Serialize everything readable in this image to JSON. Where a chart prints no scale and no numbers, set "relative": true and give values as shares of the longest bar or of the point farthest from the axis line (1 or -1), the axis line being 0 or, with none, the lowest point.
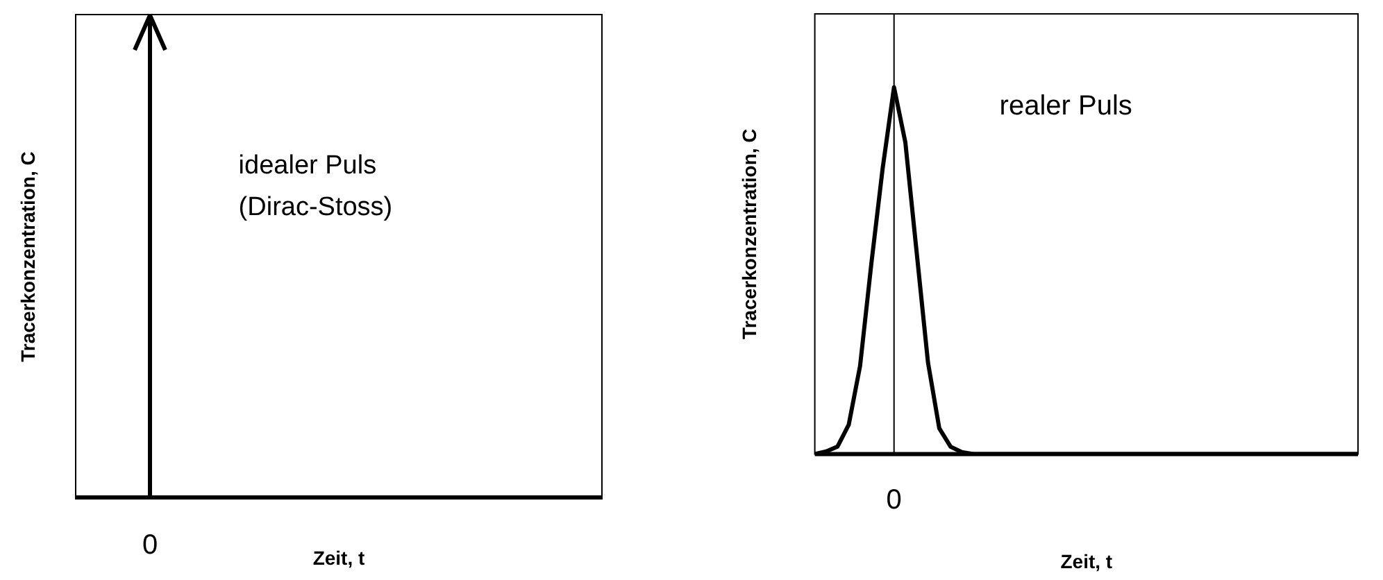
{
  "chart_data": [
    {
      "type": "other",
      "xlabel": "Zeit, t",
      "ylabel": "Tracerkonzentration, C",
      "color": "#000000",
      "annotations": [
        "idealer Puls\n(Dirac-Stoss)",
        "0"
      ]
    },
    {
      "type": "line",
      "relative": true,
      "xlabel": "Zeit, t",
      "ylabel": "Tracerkonzentration, C",
      "color": "#000000",
      "legend": false,
      "marker": "none",
      "categories": [
        null,
        null,
        null,
        null,
        null,
        null,
        null,
        null,
        null,
        null,
        null,
        null,
        null,
        null,
        null,
        null,
        null,
        null,
        null,
        null,
        null,
        null,
        null,
        null,
        null,
        null,
        null,
        null,
        null,
        null,
        null,
        null,
        null,
        null,
        null,
        null,
        null,
        null,
        null,
        null,
        null,
        null,
        null,
        null,
        null,
        null,
        null,
        null,
        null
      ],
      "values": [
        0,
        0.007,
        0.02,
        0.08,
        0.24,
        0.52,
        0.78,
        1,
        0.85,
        0.55,
        0.25,
        0.07,
        0.02,
        0.005,
        0,
        0,
        0,
        0,
        0,
        0,
        0,
        0,
        0,
        0,
        0,
        0,
        0,
        0,
        0,
        0,
        0,
        0,
        0,
        0,
        0,
        0,
        0,
        0,
        0,
        0,
        0,
        0,
        0,
        0,
        0,
        0,
        0,
        0,
        0
      ],
      "ref_lines": [
        {
          "axis": "x",
          "color": "#000000"
        }
      ],
      "annotations": [
        "realer Puls",
        "0"
      ]
    }
  ]
}
